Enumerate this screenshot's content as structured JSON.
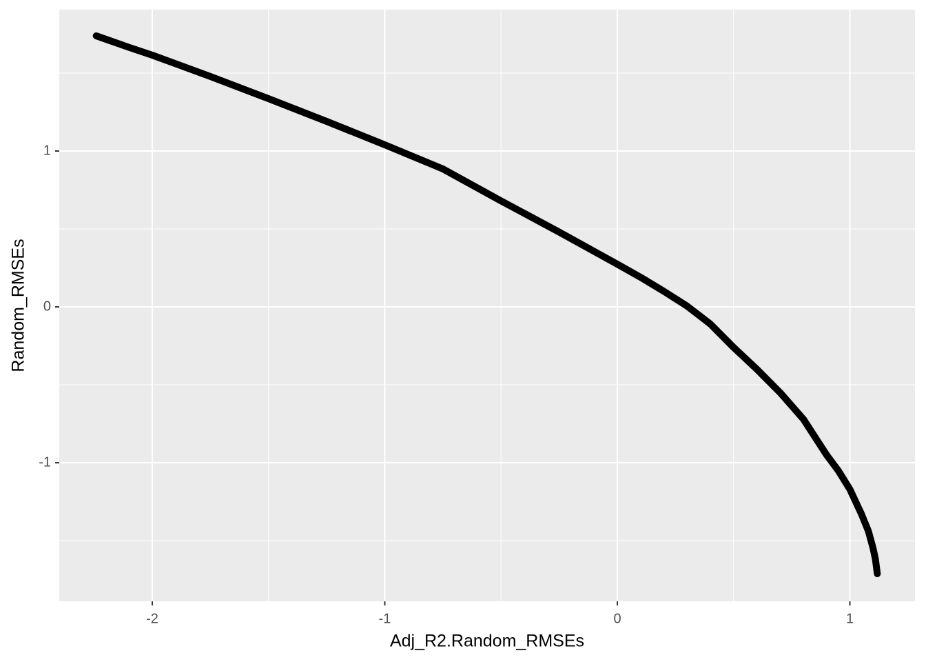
{
  "chart_data": {
    "type": "line",
    "x_label": "Adj_R2.Random_RMSEs",
    "y_label": "Random_RMSEs",
    "x": [
      -2.241,
      -2.1,
      -2,
      -1.75,
      -1.5,
      -1.25,
      -1,
      -0.75,
      -0.5,
      -0.25,
      0,
      0.1,
      0.2,
      0.3,
      0.4,
      0.5,
      0.6,
      0.7,
      0.8,
      0.9,
      0.95,
      1,
      1.05,
      1.08,
      1.1,
      1.11,
      1.118
    ],
    "series": [
      {
        "color": "#000000",
        "values": [
          1.739,
          1.665,
          1.615,
          1.478,
          1.336,
          1.19,
          1.04,
          0.885,
          0.68,
          0.48,
          0.274,
          0.19,
          0.1,
          0.005,
          -0.11,
          -0.26,
          -0.4,
          -0.55,
          -0.72,
          -0.95,
          -1.05,
          -1.17,
          -1.33,
          -1.44,
          -1.55,
          -1.62,
          -1.712
        ]
      }
    ],
    "xlim": [
      -2.4,
      1.28
    ],
    "ylim": [
      -1.889,
      1.907
    ],
    "xticks": [
      -2,
      -1,
      0,
      1
    ],
    "yticks": [
      -1,
      0,
      1
    ],
    "x_minor_grid": [
      -1.5,
      -0.5,
      0.5
    ],
    "y_minor_grid": [
      -1.5,
      -0.5,
      0.5,
      1.5
    ],
    "grid": true
  }
}
